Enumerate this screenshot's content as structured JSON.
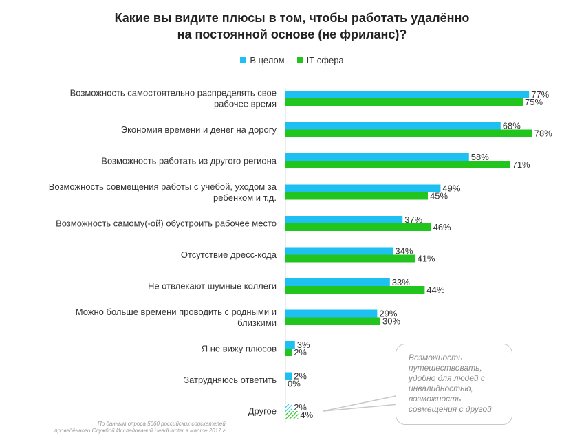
{
  "title_lines": [
    "Какие вы видите плюсы в том, чтобы работать удалённо",
    "на постоянной основе (не фриланс)?"
  ],
  "colors": {
    "general": "#1ec0f2",
    "it": "#22c51e",
    "callout_border": "#c8c8c8"
  },
  "chart_data": {
    "type": "bar",
    "orientation": "horizontal",
    "title": "Какие вы видите плюсы в том, чтобы работать удалённо на постоянной основе (не фриланс)?",
    "legend": "top",
    "grid": false,
    "xlim": [
      0,
      100
    ],
    "categories": [
      [
        "Возможность самостоятельно распределять свое",
        "рабочее время"
      ],
      [
        "Экономия времени и денег на дорогу"
      ],
      [
        "Возможность работать из другого региона"
      ],
      [
        "Возможность совмещения работы с учёбой, уходом за",
        "ребёнком и т.д."
      ],
      [
        "Возможность самому(-ой) обустроить рабочее место"
      ],
      [
        "Отсутствие дресс-кода"
      ],
      [
        "Не отвлекают шумные коллеги"
      ],
      [
        "Можно больше времени проводить с родными и",
        "близкими"
      ],
      [
        "Я не вижу плюсов"
      ],
      [
        "Затрудняюсь ответить"
      ],
      [
        "Другое"
      ]
    ],
    "series": [
      {
        "name": "В целом",
        "values": [
          77,
          68,
          58,
          49,
          37,
          34,
          33,
          29,
          3,
          2,
          2
        ],
        "labels": [
          "77%",
          "68%",
          "58%",
          "49%",
          "37%",
          "34%",
          "33%",
          "29%",
          "3%",
          "2%",
          "2%"
        ]
      },
      {
        "name": "IT-сфера",
        "values": [
          75,
          78,
          71,
          45,
          46,
          41,
          44,
          30,
          2,
          0,
          4
        ],
        "labels": [
          "75%",
          "78%",
          "71%",
          "45%",
          "46%",
          "41%",
          "44%",
          "30%",
          "2%",
          "0%",
          "4%"
        ]
      }
    ],
    "hatched_category_index": 10
  },
  "callout_text": "Возможность путешествовать, удобно для людей с инвалидностью, возможность совмещения с другой",
  "footnote_lines": [
    "По данным опроса 5660 российских соискателей,",
    "проведённого Службой Исследований HeadHunter в марте 2017 г."
  ]
}
